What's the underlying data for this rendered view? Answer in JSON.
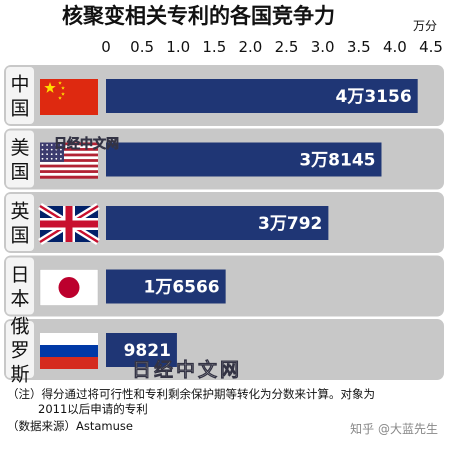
{
  "chart_data": {
    "type": "bar",
    "orientation": "horizontal",
    "title": "核聚变相关专利的各国竞争力",
    "unit": "万分",
    "xlim": [
      0,
      4.5
    ],
    "ticks": [
      "0",
      "0.5",
      "1.0",
      "1.5",
      "2.0",
      "2.5",
      "3.0",
      "3.5",
      "4.0",
      "4.5"
    ],
    "categories": [
      "中国",
      "美国",
      "英国",
      "日本",
      "俄罗斯"
    ],
    "values": [
      4.3156,
      3.8145,
      3.0792,
      1.6566,
      0.9821
    ],
    "value_labels": [
      "4万3156",
      "3万8145",
      "3万792",
      "1万6566",
      "9821"
    ],
    "legend": "none",
    "grid": false,
    "bar_color": "#1f3675"
  },
  "watermark": "日经中文网",
  "footnote": {
    "note_line1": "（注）得分通过将可行性和专利剩余保护期等转化为分数来计算。对象为",
    "note_line2": "2011以后申请的专利",
    "source": "（数据来源）Astamuse"
  },
  "credit": "知乎 @大蓝先生"
}
